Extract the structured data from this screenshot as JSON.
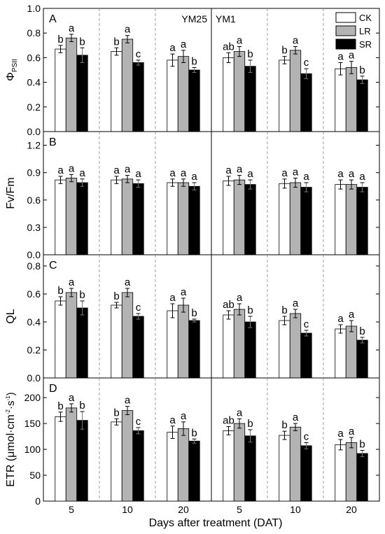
{
  "figure": {
    "xlabel": "Days after treatment (DAT)",
    "cultivars": [
      "YM25",
      "YM1"
    ],
    "days": [
      "5",
      "10",
      "20"
    ],
    "legend": [
      {
        "label": "CK",
        "color": "#ffffff"
      },
      {
        "label": "LR",
        "color": "#b3b3b3"
      },
      {
        "label": "SR",
        "color": "#000000"
      }
    ]
  },
  "chart_data": [
    {
      "type": "bar",
      "panel": "A",
      "ylabel": "Φ",
      "ylabel_sub": "PSII",
      "ylim": [
        0.0,
        1.0
      ],
      "yticks": [
        "0.0",
        "0.2",
        "0.4",
        "0.6",
        "0.8",
        "1.0"
      ],
      "yticks_val": [
        0.0,
        0.2,
        0.4,
        0.6,
        0.8,
        1.0
      ],
      "categories": [
        "YM25 5",
        "YM25 10",
        "YM25 20",
        "YM1 5",
        "YM1 10",
        "YM1 20"
      ],
      "series": [
        {
          "name": "CK",
          "values": [
            0.67,
            0.65,
            0.58,
            0.6,
            0.58,
            0.51
          ],
          "errors": [
            0.03,
            0.03,
            0.05,
            0.04,
            0.03,
            0.05
          ],
          "letters": [
            "b",
            "b",
            "a",
            "ab",
            "b",
            "a"
          ]
        },
        {
          "name": "LR",
          "values": [
            0.76,
            0.75,
            0.61,
            0.65,
            0.66,
            0.52
          ],
          "errors": [
            0.03,
            0.03,
            0.05,
            0.04,
            0.03,
            0.05
          ],
          "letters": [
            "a",
            "a",
            "a",
            "a",
            "a",
            "a"
          ]
        },
        {
          "name": "SR",
          "values": [
            0.62,
            0.56,
            0.5,
            0.53,
            0.47,
            0.42
          ],
          "errors": [
            0.06,
            0.02,
            0.02,
            0.05,
            0.04,
            0.03
          ],
          "letters": [
            "b",
            "c",
            "b",
            "b",
            "c",
            "b"
          ]
        }
      ]
    },
    {
      "type": "bar",
      "panel": "B",
      "ylabel": "Fv/Fm",
      "ylim": [
        0.0,
        1.35
      ],
      "yticks": [
        "0.0",
        "0.3",
        "0.6",
        "0.9",
        "1.2"
      ],
      "yticks_val": [
        0.0,
        0.3,
        0.6,
        0.9,
        1.2
      ],
      "categories": [
        "YM25 5",
        "YM25 10",
        "YM25 20",
        "YM1 5",
        "YM1 10",
        "YM1 20"
      ],
      "series": [
        {
          "name": "CK",
          "values": [
            0.82,
            0.82,
            0.79,
            0.81,
            0.78,
            0.77
          ],
          "errors": [
            0.04,
            0.04,
            0.04,
            0.05,
            0.05,
            0.05
          ],
          "letters": [
            "a",
            "a",
            "a",
            "a",
            "a",
            "a"
          ]
        },
        {
          "name": "LR",
          "values": [
            0.84,
            0.83,
            0.79,
            0.82,
            0.79,
            0.77
          ],
          "errors": [
            0.04,
            0.04,
            0.04,
            0.05,
            0.05,
            0.05
          ],
          "letters": [
            "a",
            "a",
            "a",
            "a",
            "a",
            "a"
          ]
        },
        {
          "name": "SR",
          "values": [
            0.79,
            0.78,
            0.75,
            0.77,
            0.74,
            0.74
          ],
          "errors": [
            0.04,
            0.04,
            0.04,
            0.05,
            0.05,
            0.05
          ],
          "letters": [
            "a",
            "a",
            "a",
            "a",
            "a",
            "a"
          ]
        }
      ]
    },
    {
      "type": "bar",
      "panel": "C",
      "ylabel": "QL",
      "ylim": [
        0.0,
        0.88
      ],
      "yticks": [
        "0.0",
        "0.2",
        "0.4",
        "0.6",
        "0.8"
      ],
      "yticks_val": [
        0.0,
        0.2,
        0.4,
        0.6,
        0.8
      ],
      "categories": [
        "YM25 5",
        "YM25 10",
        "YM25 20",
        "YM1 5",
        "YM1 10",
        "YM1 20"
      ],
      "series": [
        {
          "name": "CK",
          "values": [
            0.55,
            0.52,
            0.48,
            0.45,
            0.41,
            0.35
          ],
          "errors": [
            0.03,
            0.02,
            0.05,
            0.03,
            0.03,
            0.03
          ],
          "letters": [
            "b",
            "b",
            "a",
            "ab",
            "b",
            "a"
          ]
        },
        {
          "name": "LR",
          "values": [
            0.61,
            0.61,
            0.52,
            0.49,
            0.46,
            0.37
          ],
          "errors": [
            0.03,
            0.03,
            0.05,
            0.04,
            0.03,
            0.04
          ],
          "letters": [
            "a",
            "a",
            "a",
            "a",
            "a",
            "a"
          ]
        },
        {
          "name": "SR",
          "values": [
            0.5,
            0.44,
            0.41,
            0.4,
            0.32,
            0.27
          ],
          "errors": [
            0.05,
            0.02,
            0.01,
            0.04,
            0.02,
            0.02
          ],
          "letters": [
            "b",
            "c",
            "b",
            "b",
            "c",
            "b"
          ]
        }
      ]
    },
    {
      "type": "bar",
      "panel": "D",
      "ylabel": "ETR (μmol·cm",
      "ylim": [
        0,
        238
      ],
      "yticks": [
        "0",
        "50",
        "100",
        "150",
        "200"
      ],
      "yticks_val": [
        0,
        50,
        100,
        150,
        200
      ],
      "categories": [
        "YM25 5",
        "YM25 10",
        "YM25 20",
        "YM1 5",
        "YM1 10",
        "YM1 20"
      ],
      "series": [
        {
          "name": "CK",
          "values": [
            163,
            153,
            133,
            136,
            127,
            109
          ],
          "errors": [
            9,
            6,
            12,
            8,
            8,
            10
          ],
          "letters": [
            "b",
            "b",
            "a",
            "ab",
            "b",
            "a"
          ]
        },
        {
          "name": "LR",
          "values": [
            180,
            175,
            140,
            150,
            143,
            113
          ],
          "errors": [
            8,
            8,
            13,
            9,
            7,
            10
          ],
          "letters": [
            "a",
            "a",
            "a",
            "a",
            "a",
            "a"
          ]
        },
        {
          "name": "SR",
          "values": [
            156,
            136,
            116,
            126,
            107,
            92
          ],
          "errors": [
            17,
            6,
            4,
            12,
            6,
            6
          ],
          "letters": [
            "b",
            "c",
            "b",
            "b",
            "c",
            "b"
          ]
        }
      ]
    }
  ]
}
